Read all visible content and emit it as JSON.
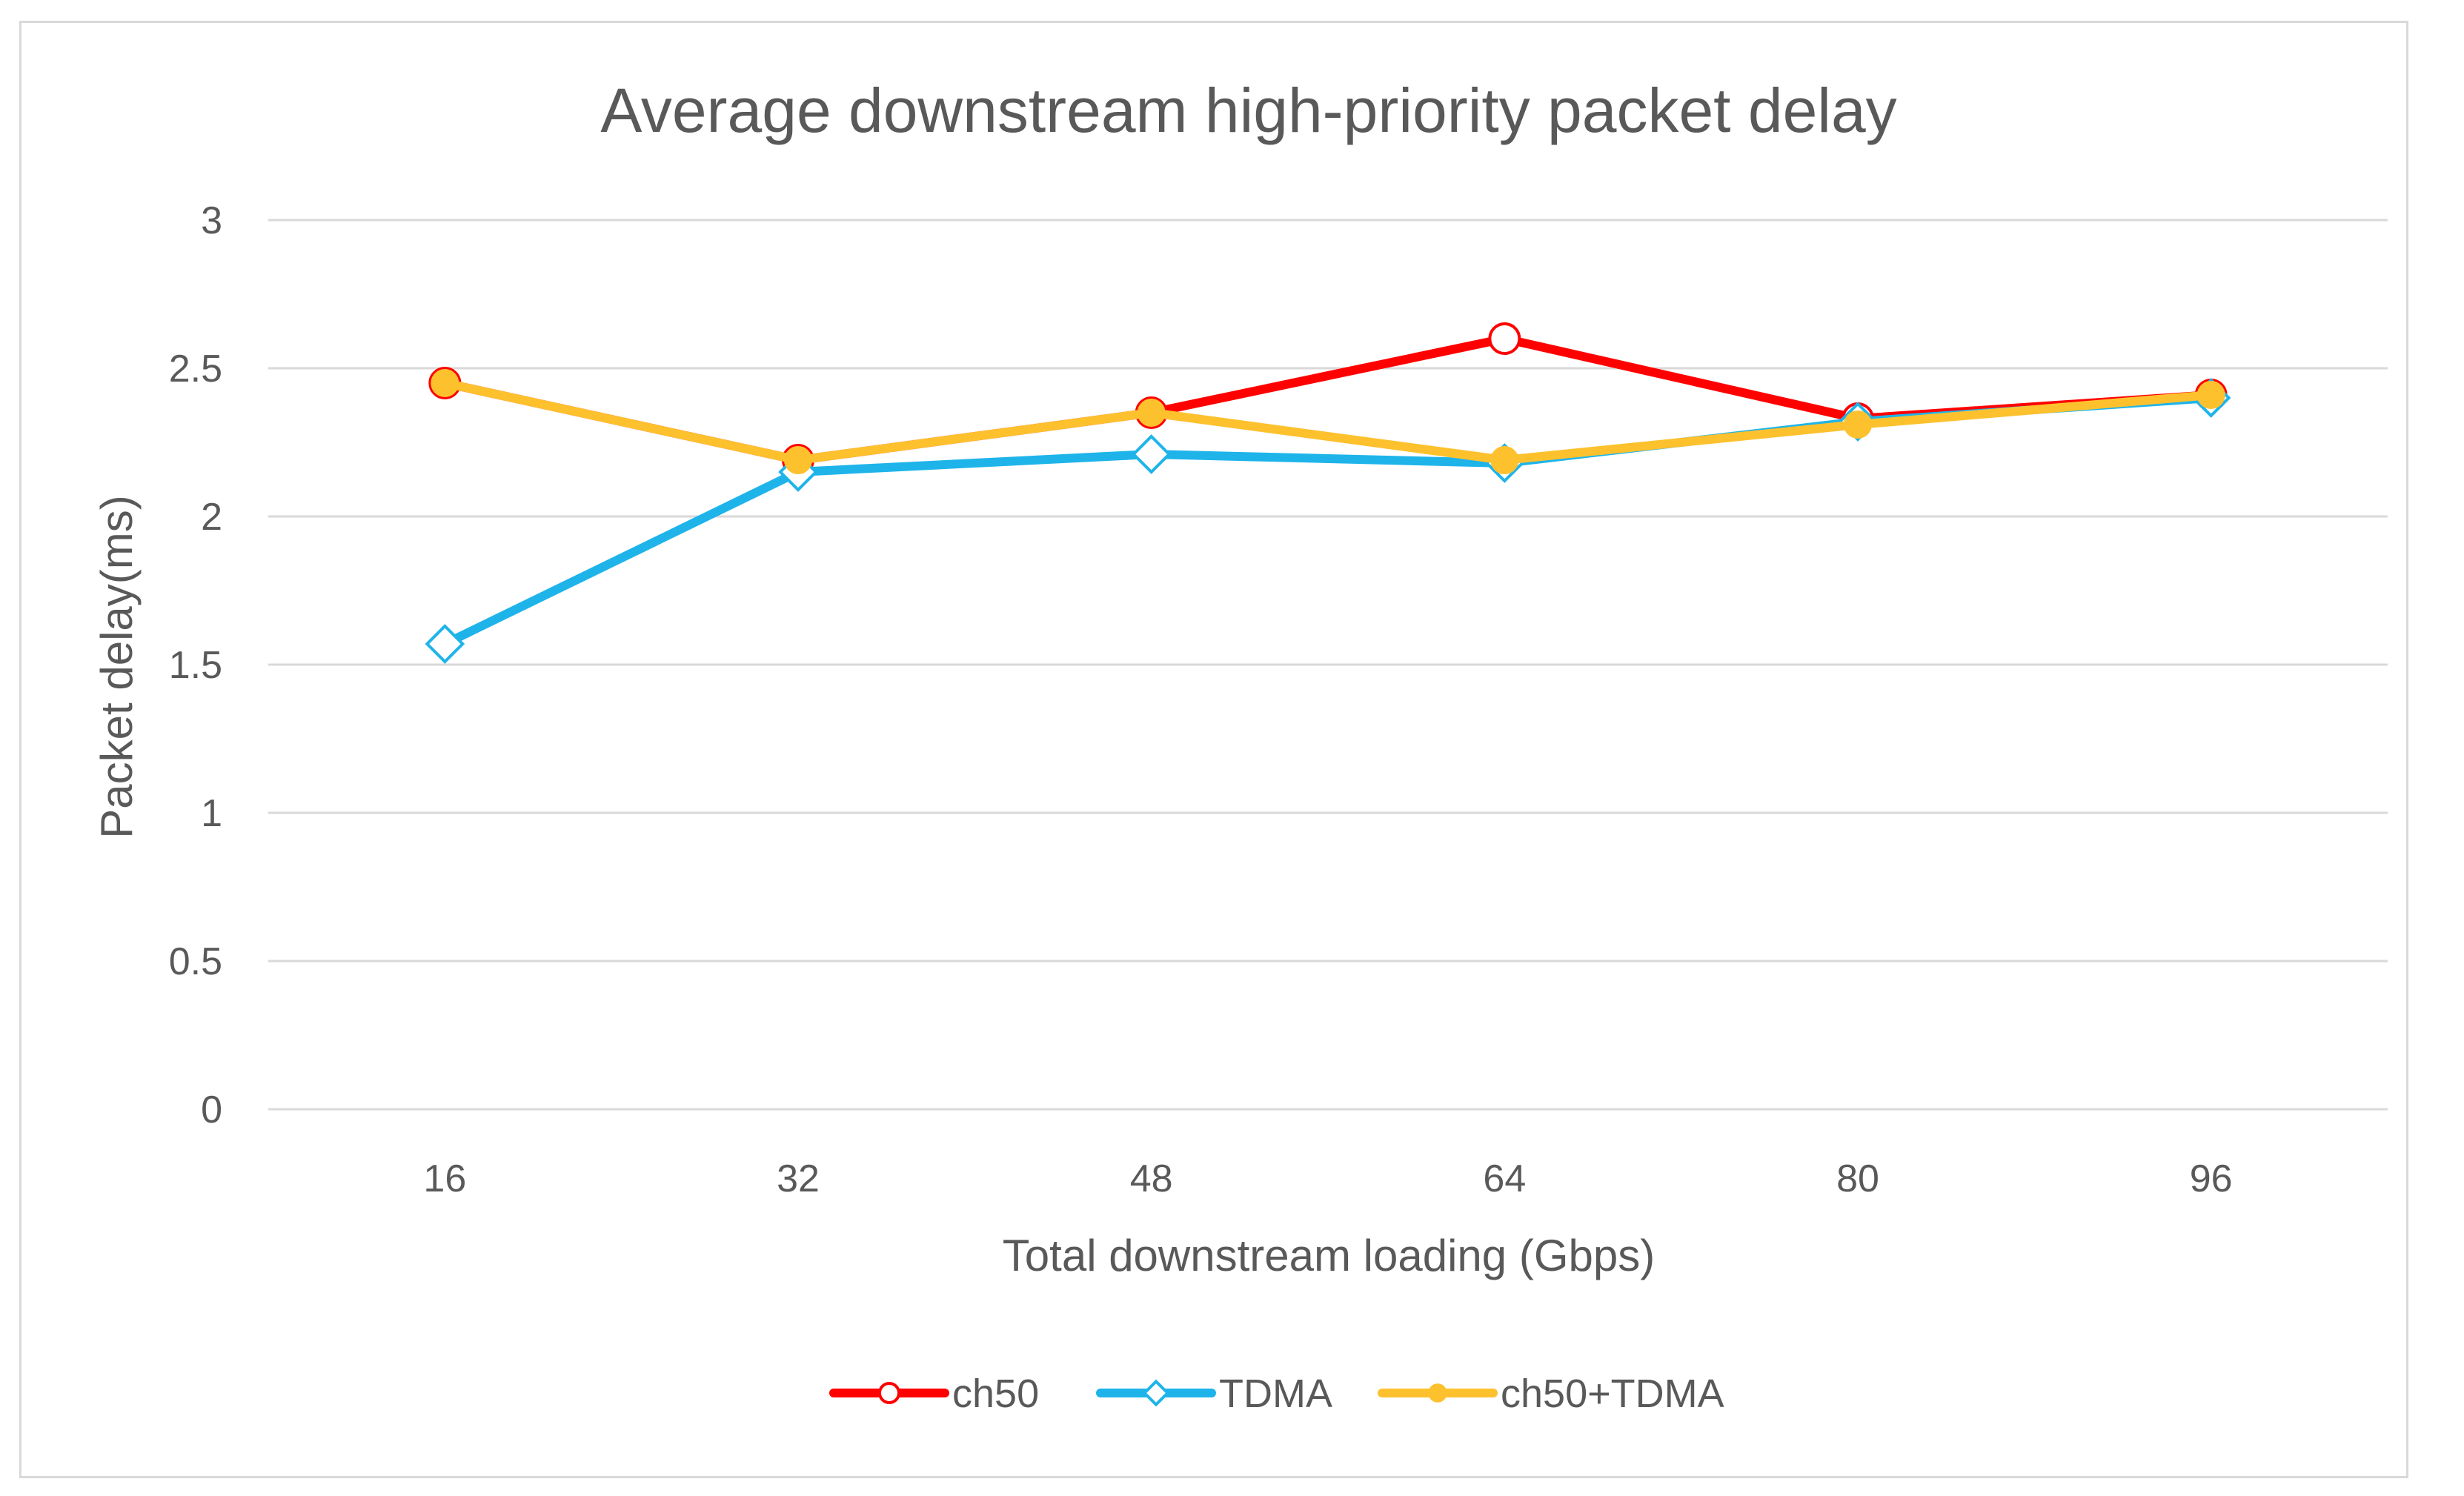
{
  "chart_data": {
    "type": "line",
    "title": "Average downstream high-priority packet delay",
    "xlabel": "Total downstream loading (Gbps)",
    "ylabel": "Packet delay(ms)",
    "categories": [
      "16",
      "32",
      "48",
      "64",
      "80",
      "96"
    ],
    "ylim": [
      0,
      3
    ],
    "yticks": [
      "0",
      "0.5",
      "1",
      "1.5",
      "2",
      "2.5",
      "3"
    ],
    "grid": true,
    "legend_position": "bottom",
    "series": [
      {
        "name": "ch50",
        "values": [
          2.45,
          2.19,
          2.35,
          2.6,
          2.33,
          2.41
        ],
        "color": "#ff0000",
        "marker": "circle-open"
      },
      {
        "name": "TDMA",
        "values": [
          1.57,
          2.15,
          2.21,
          2.18,
          2.32,
          2.4
        ],
        "color": "#1eb4ea",
        "marker": "diamond-open"
      },
      {
        "name": "ch50+TDMA",
        "values": [
          2.45,
          2.19,
          2.35,
          2.19,
          2.31,
          2.41
        ],
        "color": "#fdc12e",
        "marker": "circle-filled"
      }
    ]
  }
}
